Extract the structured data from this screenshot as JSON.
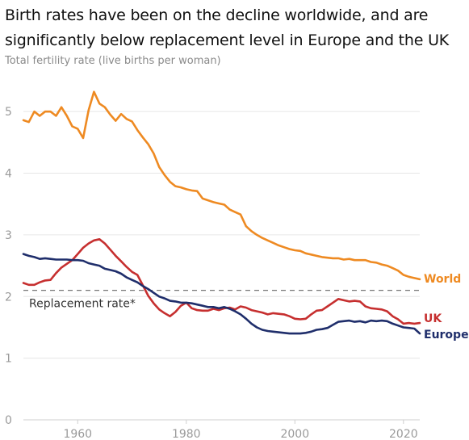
{
  "chart_data": {
    "type": "line",
    "title": "Birth rates have been on the decline worldwide, and are significantly below replacement level in Europe and the UK",
    "subtitle": "Total fertility rate (live births per woman)",
    "xlim": [
      1950,
      2023
    ],
    "ylim": [
      0,
      5.5
    ],
    "x_ticks": [
      1960,
      1980,
      2000,
      2020
    ],
    "y_ticks": [
      0,
      1,
      2,
      3,
      4,
      5
    ],
    "grid": "horizontal",
    "reference_line": {
      "value": 2.1,
      "label": "Replacement rate*"
    },
    "series": [
      {
        "name": "World",
        "color": "#ee8a22",
        "x": [
          1950,
          1951,
          1952,
          1953,
          1954,
          1955,
          1956,
          1957,
          1958,
          1959,
          1960,
          1961,
          1962,
          1963,
          1964,
          1965,
          1966,
          1967,
          1968,
          1969,
          1970,
          1971,
          1972,
          1973,
          1974,
          1975,
          1976,
          1977,
          1978,
          1979,
          1980,
          1981,
          1982,
          1983,
          1984,
          1985,
          1986,
          1987,
          1988,
          1989,
          1990,
          1991,
          1992,
          1993,
          1994,
          1995,
          1996,
          1997,
          1998,
          1999,
          2000,
          2001,
          2002,
          2003,
          2004,
          2005,
          2006,
          2007,
          2008,
          2009,
          2010,
          2011,
          2012,
          2013,
          2014,
          2015,
          2016,
          2017,
          2018,
          2019,
          2020,
          2021,
          2022,
          2023
        ],
        "values": [
          4.86,
          4.83,
          5.0,
          4.93,
          5.0,
          5.0,
          4.93,
          5.07,
          4.93,
          4.76,
          4.72,
          4.57,
          5.02,
          5.32,
          5.13,
          5.07,
          4.95,
          4.85,
          4.96,
          4.88,
          4.84,
          4.7,
          4.58,
          4.47,
          4.32,
          4.1,
          3.97,
          3.86,
          3.79,
          3.77,
          3.74,
          3.72,
          3.71,
          3.59,
          3.56,
          3.53,
          3.51,
          3.49,
          3.41,
          3.37,
          3.33,
          3.14,
          3.06,
          3.0,
          2.95,
          2.91,
          2.87,
          2.83,
          2.8,
          2.77,
          2.75,
          2.74,
          2.7,
          2.68,
          2.66,
          2.64,
          2.63,
          2.62,
          2.62,
          2.6,
          2.61,
          2.59,
          2.59,
          2.59,
          2.56,
          2.55,
          2.52,
          2.5,
          2.46,
          2.42,
          2.35,
          2.32,
          2.3,
          2.28
        ]
      },
      {
        "name": "UK",
        "color": "#c62f2f",
        "x": [
          1950,
          1951,
          1952,
          1953,
          1954,
          1955,
          1956,
          1957,
          1958,
          1959,
          1960,
          1961,
          1962,
          1963,
          1964,
          1965,
          1966,
          1967,
          1968,
          1969,
          1970,
          1971,
          1972,
          1973,
          1974,
          1975,
          1976,
          1977,
          1978,
          1979,
          1980,
          1981,
          1982,
          1983,
          1984,
          1985,
          1986,
          1987,
          1988,
          1989,
          1990,
          1991,
          1992,
          1993,
          1994,
          1995,
          1996,
          1997,
          1998,
          1999,
          2000,
          2001,
          2002,
          2003,
          2004,
          2005,
          2006,
          2007,
          2008,
          2009,
          2010,
          2011,
          2012,
          2013,
          2014,
          2015,
          2016,
          2017,
          2018,
          2019,
          2020,
          2021,
          2022,
          2023
        ],
        "values": [
          2.22,
          2.19,
          2.19,
          2.23,
          2.26,
          2.27,
          2.38,
          2.47,
          2.53,
          2.59,
          2.69,
          2.79,
          2.86,
          2.91,
          2.93,
          2.86,
          2.76,
          2.66,
          2.57,
          2.48,
          2.4,
          2.35,
          2.18,
          2.01,
          1.89,
          1.79,
          1.73,
          1.68,
          1.75,
          1.85,
          1.9,
          1.81,
          1.78,
          1.77,
          1.77,
          1.8,
          1.78,
          1.81,
          1.82,
          1.79,
          1.84,
          1.82,
          1.78,
          1.76,
          1.74,
          1.71,
          1.73,
          1.72,
          1.71,
          1.68,
          1.64,
          1.63,
          1.64,
          1.71,
          1.77,
          1.78,
          1.84,
          1.9,
          1.96,
          1.94,
          1.92,
          1.93,
          1.92,
          1.84,
          1.81,
          1.8,
          1.79,
          1.76,
          1.68,
          1.63,
          1.56,
          1.57,
          1.56,
          1.57
        ]
      },
      {
        "name": "Europe",
        "color": "#1f2e6b",
        "x": [
          1950,
          1951,
          1952,
          1953,
          1954,
          1955,
          1956,
          1957,
          1958,
          1959,
          1960,
          1961,
          1962,
          1963,
          1964,
          1965,
          1966,
          1967,
          1968,
          1969,
          1970,
          1971,
          1972,
          1973,
          1974,
          1975,
          1976,
          1977,
          1978,
          1979,
          1980,
          1981,
          1982,
          1983,
          1984,
          1985,
          1986,
          1987,
          1988,
          1989,
          1990,
          1991,
          1992,
          1993,
          1994,
          1995,
          1996,
          1997,
          1998,
          1999,
          2000,
          2001,
          2002,
          2003,
          2004,
          2005,
          2006,
          2007,
          2008,
          2009,
          2010,
          2011,
          2012,
          2013,
          2014,
          2015,
          2016,
          2017,
          2018,
          2019,
          2020,
          2021,
          2022,
          2023
        ],
        "values": [
          2.69,
          2.66,
          2.64,
          2.61,
          2.62,
          2.61,
          2.6,
          2.6,
          2.6,
          2.59,
          2.59,
          2.58,
          2.54,
          2.52,
          2.5,
          2.45,
          2.43,
          2.41,
          2.37,
          2.31,
          2.27,
          2.23,
          2.17,
          2.12,
          2.06,
          2.0,
          1.97,
          1.93,
          1.92,
          1.9,
          1.9,
          1.89,
          1.87,
          1.85,
          1.83,
          1.83,
          1.81,
          1.83,
          1.8,
          1.76,
          1.71,
          1.64,
          1.56,
          1.5,
          1.46,
          1.44,
          1.43,
          1.42,
          1.41,
          1.4,
          1.4,
          1.4,
          1.41,
          1.43,
          1.46,
          1.47,
          1.49,
          1.54,
          1.59,
          1.6,
          1.61,
          1.59,
          1.6,
          1.58,
          1.61,
          1.6,
          1.61,
          1.6,
          1.56,
          1.53,
          1.5,
          1.49,
          1.48,
          1.4
        ]
      }
    ]
  }
}
